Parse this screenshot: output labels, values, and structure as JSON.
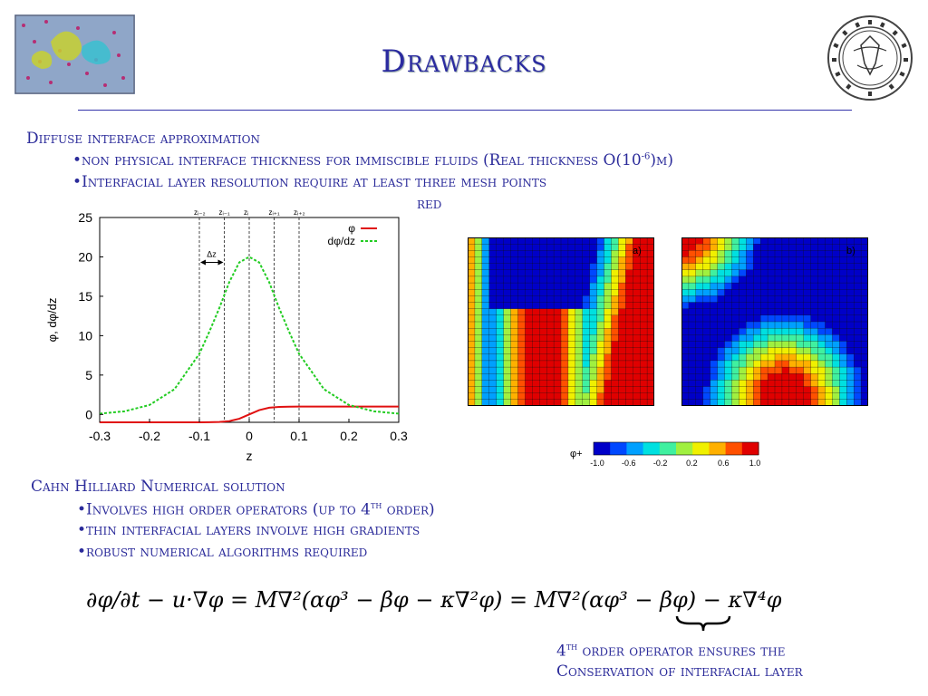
{
  "title": "Drawbacks",
  "section1": {
    "heading": "Diffuse interface approximation",
    "bullets": [
      "•non physical  interface thickness for immiscible fluids (Real thickness O(10",
      "•Interfacial layer resolution  require at least three mesh points",
      "red"
    ],
    "exponent": "-6",
    "exp_tail": ")m)"
  },
  "chart_data": {
    "type": "line",
    "xlabel": "z",
    "ylabel": "φ, dφ/dz",
    "xlim": [
      -0.3,
      0.3
    ],
    "ylim": [
      -1,
      25
    ],
    "xticks": [
      "-0.3",
      "-0.2",
      "-0.1",
      "0",
      "0.1",
      "0.2",
      "0.3"
    ],
    "yticks": [
      "0",
      "5",
      "10",
      "15",
      "20",
      "25"
    ],
    "legend": "top-right",
    "gridlines_z": [
      -0.1,
      -0.05,
      0,
      0.05,
      0.1
    ],
    "grid_labels": [
      "zᵢ₋₂",
      "zᵢ₋₁",
      "zᵢ",
      "zᵢ₊₁",
      "zᵢ₊₂"
    ],
    "dz_label": "Δz",
    "series": [
      {
        "name": "φ",
        "color": "#e01010",
        "x": [
          -0.3,
          -0.2,
          -0.1,
          -0.08,
          -0.06,
          -0.04,
          -0.02,
          0,
          0.02,
          0.04,
          0.06,
          0.08,
          0.1,
          0.2,
          0.3
        ],
        "values": [
          -1,
          -1,
          -1,
          -0.98,
          -0.95,
          -0.85,
          -0.55,
          0,
          0.55,
          0.85,
          0.95,
          0.98,
          1,
          1,
          1
        ]
      },
      {
        "name": "dφ/dz",
        "color": "#22cc22",
        "x": [
          -0.3,
          -0.25,
          -0.2,
          -0.15,
          -0.1,
          -0.08,
          -0.06,
          -0.04,
          -0.02,
          0,
          0.02,
          0.04,
          0.06,
          0.08,
          0.1,
          0.15,
          0.2,
          0.25,
          0.3
        ],
        "values": [
          0.1,
          0.4,
          1.2,
          3.2,
          7.7,
          10.5,
          13.5,
          16.8,
          19.3,
          20,
          19.3,
          16.8,
          13.5,
          10.5,
          7.7,
          3.2,
          1.2,
          0.4,
          0.1
        ]
      }
    ]
  },
  "heatmaps": {
    "labels": [
      "a)",
      "b)"
    ],
    "colorbar_label": "φ+",
    "colorbar_ticks": [
      "-1.0",
      "-0.6",
      "-0.2",
      "0.2",
      "0.6",
      "1.0"
    ],
    "colors": [
      "#0000c8",
      "#0048ff",
      "#00a0ff",
      "#00e0e0",
      "#40f0a0",
      "#a0f040",
      "#f0f000",
      "#ffb000",
      "#ff5000",
      "#e00000"
    ]
  },
  "section2": {
    "heading": "Cahn Hilliard Numerical solution",
    "b1_pre": "•Involves high order operators (up to 4",
    "b1_sup": "th",
    "b1_post": " order)",
    "b2": "•thin interfacial layers involve high gradients",
    "b3": "•robust numerical algorithms required"
  },
  "equation": "∂φ/∂t − u·∇φ = M∇²(αφ³ − βφ − κ∇²φ) = M∇²(αφ³ − βφ) − κ∇⁴φ",
  "note": {
    "line1_pre": "4",
    "line1_sup": "th",
    "line1_post": "  order operator ensures the",
    "line2": "Conservation of interfacial layer"
  }
}
